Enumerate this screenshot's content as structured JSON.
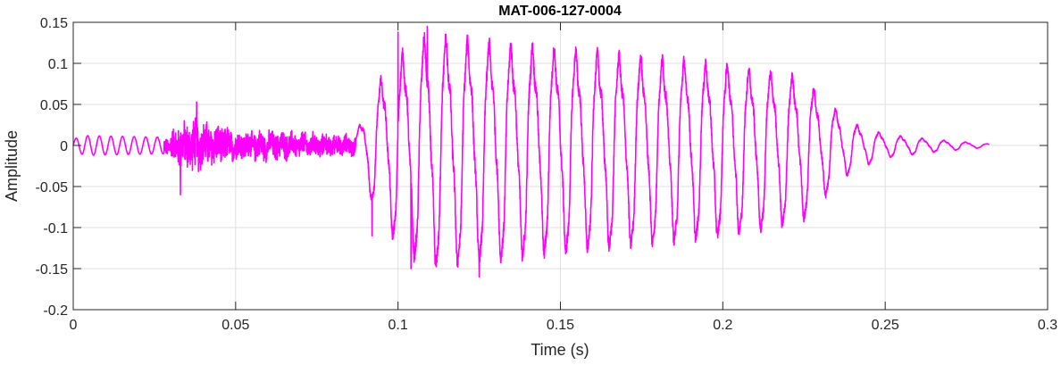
{
  "chart_data": {
    "type": "line",
    "title": "MAT-006-127-0004",
    "xlabel": "Time (s)",
    "ylabel": "Amplitude",
    "xlim": [
      0,
      0.3
    ],
    "ylim": [
      -0.2,
      0.15
    ],
    "xticks": [
      0,
      0.05,
      0.1,
      0.15,
      0.2,
      0.25,
      0.3
    ],
    "xtick_labels": [
      "0",
      "0.05",
      "0.1",
      "0.15",
      "0.2",
      "0.25",
      "0.3"
    ],
    "yticks": [
      -0.2,
      -0.15,
      -0.1,
      -0.05,
      0,
      0.05,
      0.1,
      0.15
    ],
    "ytick_labels": [
      "-0.2",
      "-0.15",
      "-0.1",
      "-0.05",
      "0",
      "0.05",
      "0.1",
      "0.15"
    ],
    "grid": true,
    "line_color": "#ff00ff",
    "series": [
      {
        "segments": [
          {
            "kind": "tone",
            "t_start": 0.0,
            "t_end": 0.028,
            "freq_hz": 280,
            "env": [
              [
                0.0,
                0.008
              ],
              [
                0.004,
                0.012
              ],
              [
                0.028,
                0.01
              ]
            ]
          },
          {
            "kind": "noise",
            "t_start": 0.028,
            "t_end": 0.087,
            "env": [
              [
                0.028,
                0.01
              ],
              [
                0.033,
                0.03
              ],
              [
                0.038,
                0.035
              ],
              [
                0.05,
                0.02
              ],
              [
                0.065,
                0.018
              ],
              [
                0.087,
                0.012
              ]
            ]
          },
          {
            "kind": "voiced",
            "t_start": 0.087,
            "t_end": 0.282,
            "freq_hz": 150,
            "env": [
              [
                0.087,
                0.015
              ],
              [
                0.091,
                0.06
              ],
              [
                0.094,
                0.085
              ],
              [
                0.1,
                0.12
              ],
              [
                0.109,
                0.148
              ],
              [
                0.125,
                0.14
              ],
              [
                0.15,
                0.13
              ],
              [
                0.175,
                0.12
              ],
              [
                0.2,
                0.11
              ],
              [
                0.215,
                0.1
              ],
              [
                0.225,
                0.09
              ],
              [
                0.232,
                0.06
              ],
              [
                0.24,
                0.03
              ],
              [
                0.25,
                0.015
              ],
              [
                0.265,
                0.008
              ],
              [
                0.282,
                0.002
              ]
            ]
          }
        ],
        "peaks": [
          {
            "x": 0.109,
            "y": 0.145
          },
          {
            "x": 0.1,
            "y": 0.138
          },
          {
            "x": 0.125,
            "y": -0.16
          },
          {
            "x": 0.104,
            "y": -0.15
          },
          {
            "x": 0.092,
            "y": -0.11
          },
          {
            "x": 0.033,
            "y": -0.06
          },
          {
            "x": 0.038,
            "y": 0.053
          }
        ]
      }
    ]
  }
}
